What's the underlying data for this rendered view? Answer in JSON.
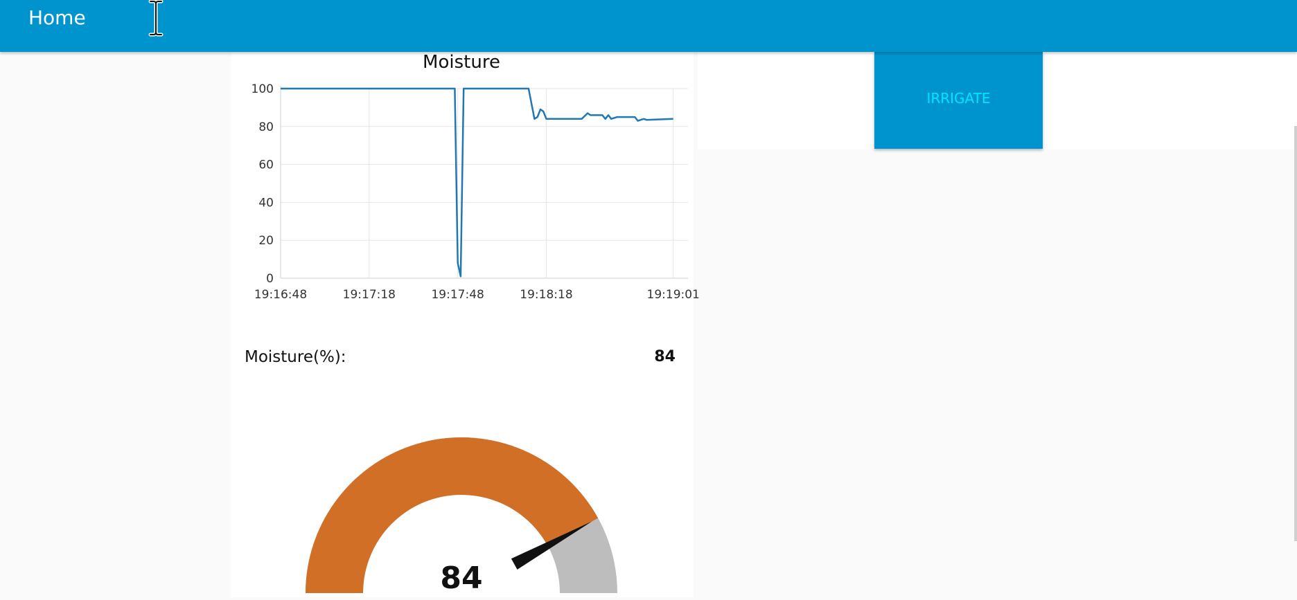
{
  "toolbar": {
    "title": "Home",
    "background": "#0094ce"
  },
  "button": {
    "label": "IRRIGATE",
    "text_color": "#00e5ff",
    "background": "#0094ce"
  },
  "readout": {
    "label": "Moisture(%):",
    "value": "84"
  },
  "gauge": {
    "value": 84,
    "display": "84",
    "min": 0,
    "max": 100,
    "fill_color": "#d26f26",
    "track_color": "#bdbdbd",
    "needle_color": "#111111"
  },
  "chart_data": {
    "type": "line",
    "title": "Moisture",
    "xlabel": "",
    "ylabel": "",
    "ylim": [
      0,
      100
    ],
    "yticks": [
      0,
      20,
      40,
      60,
      80,
      100
    ],
    "xlim": [
      "19:16:48",
      "19:19:01"
    ],
    "xticks": [
      "19:16:48",
      "19:17:18",
      "19:17:48",
      "19:18:18",
      "19:19:01"
    ],
    "grid": true,
    "legend": "none",
    "series_color": "#1f77b4",
    "series": [
      {
        "x": [
          "19:16:48",
          "19:17:47",
          "19:17:48",
          "19:17:49",
          "19:17:50",
          "19:18:12",
          "19:18:14",
          "19:18:15",
          "19:18:16",
          "19:18:17",
          "19:18:18",
          "19:18:30",
          "19:18:32",
          "19:18:33",
          "19:18:37",
          "19:18:38",
          "19:18:39",
          "19:18:40",
          "19:18:42",
          "19:18:48",
          "19:18:49",
          "19:18:51",
          "19:18:52",
          "19:19:01"
        ],
        "y": [
          100,
          100,
          8,
          1,
          100,
          100,
          84,
          85,
          89,
          88,
          84,
          84,
          87,
          86,
          86,
          84,
          86,
          84,
          85,
          85,
          83,
          84,
          83.5,
          84
        ]
      }
    ]
  }
}
